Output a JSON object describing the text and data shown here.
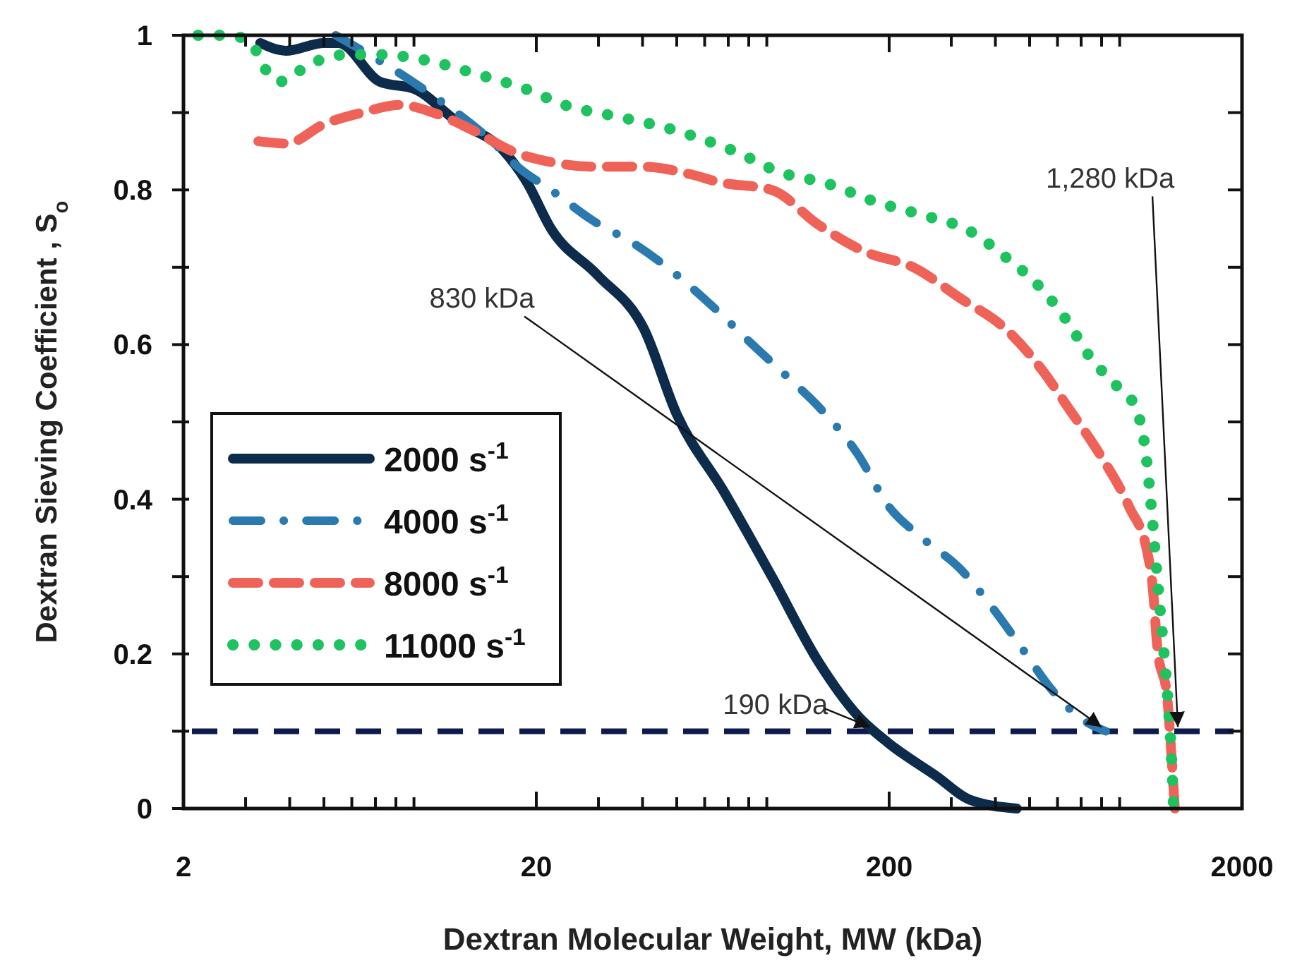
{
  "chart_data": {
    "type": "line",
    "xlabel": "Dextran Molecular Weight, MW (kDa)",
    "ylabel": "Dextran Sieving Coefficient , S$_{o}$",
    "log": "x",
    "xlim": [
      2,
      2000
    ],
    "ylim": [
      0,
      1
    ],
    "xticks": [
      2,
      {
        "value": 3,
        "label": null
      },
      {
        "value": 4,
        "label": null
      },
      {
        "value": 5,
        "label": null
      },
      {
        "value": 6,
        "label": null
      },
      {
        "value": 7,
        "label": null
      },
      {
        "value": 8,
        "label": null
      },
      {
        "value": 9,
        "label": null
      },
      20,
      {
        "value": 30,
        "label": null
      },
      {
        "value": 40,
        "label": null
      },
      {
        "value": 50,
        "label": null
      },
      {
        "value": 60,
        "label": null
      },
      {
        "value": 70,
        "label": null
      },
      {
        "value": 80,
        "label": null
      },
      {
        "value": 90,
        "label": null
      },
      200,
      {
        "value": 300,
        "label": null
      },
      {
        "value": 400,
        "label": null
      },
      {
        "value": 500,
        "label": null
      },
      {
        "value": 600,
        "label": null
      },
      {
        "value": 700,
        "label": null
      },
      {
        "value": 800,
        "label": null
      },
      {
        "value": 900,
        "label": null
      },
      2000
    ],
    "yticks": [
      0,
      {
        "value": 0.1,
        "label": null
      },
      0.2,
      {
        "value": 0.3,
        "label": null
      },
      0.4,
      {
        "value": 0.5,
        "label": null
      },
      0.6,
      {
        "value": 0.7,
        "label": null
      },
      0.8,
      {
        "value": 0.9,
        "label": null
      },
      1
    ],
    "legend": "left",
    "marker": "none",
    "series": [
      {
        "name": "2000 s$^{-1}$",
        "color": "#0d2b4a",
        "line_style": "solid",
        "x": [
          3.3,
          3.9,
          5.0,
          5.5,
          7.2,
          9.1,
          11.8,
          16.2,
          18.8,
          22,
          29.8,
          40.4,
          50,
          68,
          93,
          126,
          163,
          200,
          272,
          340,
          460
        ],
        "values": [
          0.99,
          0.98,
          0.99,
          0.99,
          0.94,
          0.93,
          0.89,
          0.85,
          0.81,
          0.75,
          0.69,
          0.62,
          0.51,
          0.41,
          0.3,
          0.19,
          0.12,
          0.084,
          0.042,
          0.011,
          0
        ]
      },
      {
        "name": "4000 s$^{-1}$",
        "color": "#2a7ab0",
        "line_style": "dashdot",
        "x": [
          5.4,
          9.6,
          15.2,
          17.7,
          22,
          29,
          38,
          50,
          63,
          82,
          102,
          126,
          162,
          200,
          248,
          318,
          392,
          471,
          587,
          707,
          822
        ],
        "values": [
          1.0,
          0.93,
          0.86,
          0.83,
          0.8,
          0.76,
          0.73,
          0.69,
          0.65,
          0.6,
          0.56,
          0.52,
          0.46,
          0.39,
          0.35,
          0.31,
          0.26,
          0.21,
          0.15,
          0.115,
          0.1
        ]
      },
      {
        "name": "8000 s$^{-1}$",
        "color": "#ef6258",
        "line_style": "dashed",
        "x": [
          3.26,
          3.92,
          5.0,
          6.42,
          8.2,
          10.2,
          13.5,
          17.1,
          22,
          29.8,
          40.4,
          55,
          66,
          93,
          126,
          171,
          234,
          318,
          428,
          547,
          640,
          796,
          958,
          1080,
          1120,
          1150,
          1230,
          1260,
          1290
        ],
        "values": [
          0.863,
          0.86,
          0.885,
          0.9,
          0.91,
          0.9,
          0.875,
          0.85,
          0.836,
          0.83,
          0.83,
          0.82,
          0.81,
          0.8,
          0.755,
          0.72,
          0.7,
          0.66,
          0.62,
          0.565,
          0.52,
          0.456,
          0.39,
          0.33,
          0.28,
          0.21,
          0.14,
          0.073,
          0
        ]
      },
      {
        "name": "11000 s$^{-1}$",
        "color": "#1ec25f",
        "line_style": "dotted",
        "x": [
          2.2,
          2.68,
          3.12,
          3.32,
          3.74,
          4.3,
          5.0,
          5.86,
          7.1,
          9.9,
          13.5,
          18.8,
          24,
          34.6,
          47,
          64,
          73,
          98,
          134,
          182,
          246,
          335,
          428,
          533,
          640,
          741,
          881,
          995,
          1070,
          1110,
          1150,
          1190,
          1230,
          1260,
          1280
        ],
        "values": [
          1.0,
          1.0,
          0.99,
          0.965,
          0.94,
          0.955,
          0.97,
          0.975,
          0.975,
          0.967,
          0.95,
          0.93,
          0.91,
          0.894,
          0.88,
          0.86,
          0.85,
          0.823,
          0.808,
          0.785,
          0.768,
          0.748,
          0.713,
          0.675,
          0.63,
          0.584,
          0.547,
          0.52,
          0.456,
          0.383,
          0.3,
          0.224,
          0.146,
          0.073,
          0
        ]
      }
    ],
    "ref_lines": [
      {
        "axis": "y",
        "value": 0.1,
        "color": "#0d1a4d",
        "line_style": "dashed"
      }
    ],
    "annotations": [
      {
        "text": "830 kDa",
        "x": 830,
        "y": 0.1
      },
      {
        "text": "190 kDa",
        "x": 190,
        "y": 0.1
      },
      {
        "text": "1,280 kDa",
        "x": 1280,
        "y": 0.1
      }
    ]
  }
}
